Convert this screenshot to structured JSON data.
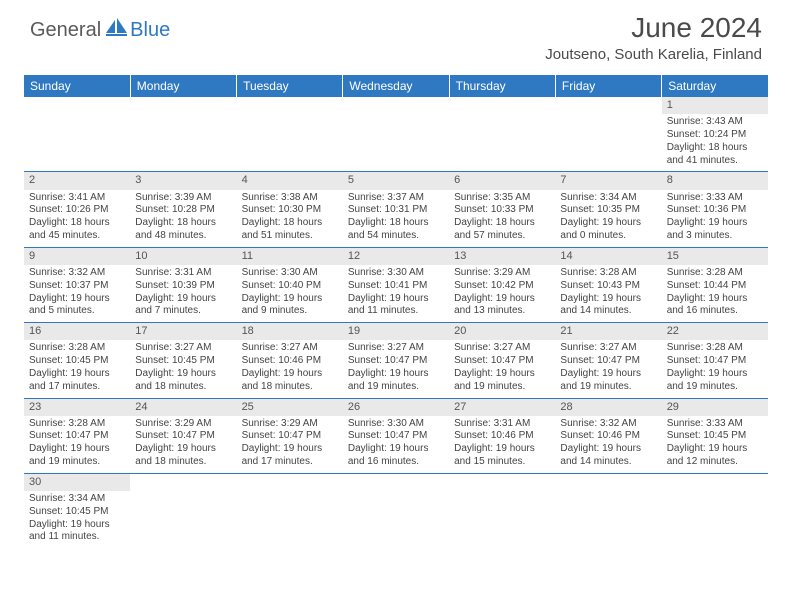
{
  "logo": {
    "text_dark": "General",
    "text_blue": "Blue",
    "icon_color": "#2f79c2"
  },
  "title": "June 2024",
  "location": "Joutseno, South Karelia, Finland",
  "header_bg": "#2f79c2",
  "header_text": "#ffffff",
  "band_bg": "#e9e9e9",
  "border_color": "#2f79c2",
  "weekdays": [
    "Sunday",
    "Monday",
    "Tuesday",
    "Wednesday",
    "Thursday",
    "Friday",
    "Saturday"
  ],
  "weeks": [
    [
      null,
      null,
      null,
      null,
      null,
      null,
      {
        "n": "1",
        "sr": "Sunrise: 3:43 AM",
        "ss": "Sunset: 10:24 PM",
        "d1": "Daylight: 18 hours",
        "d2": "and 41 minutes."
      }
    ],
    [
      {
        "n": "2",
        "sr": "Sunrise: 3:41 AM",
        "ss": "Sunset: 10:26 PM",
        "d1": "Daylight: 18 hours",
        "d2": "and 45 minutes."
      },
      {
        "n": "3",
        "sr": "Sunrise: 3:39 AM",
        "ss": "Sunset: 10:28 PM",
        "d1": "Daylight: 18 hours",
        "d2": "and 48 minutes."
      },
      {
        "n": "4",
        "sr": "Sunrise: 3:38 AM",
        "ss": "Sunset: 10:30 PM",
        "d1": "Daylight: 18 hours",
        "d2": "and 51 minutes."
      },
      {
        "n": "5",
        "sr": "Sunrise: 3:37 AM",
        "ss": "Sunset: 10:31 PM",
        "d1": "Daylight: 18 hours",
        "d2": "and 54 minutes."
      },
      {
        "n": "6",
        "sr": "Sunrise: 3:35 AM",
        "ss": "Sunset: 10:33 PM",
        "d1": "Daylight: 18 hours",
        "d2": "and 57 minutes."
      },
      {
        "n": "7",
        "sr": "Sunrise: 3:34 AM",
        "ss": "Sunset: 10:35 PM",
        "d1": "Daylight: 19 hours",
        "d2": "and 0 minutes."
      },
      {
        "n": "8",
        "sr": "Sunrise: 3:33 AM",
        "ss": "Sunset: 10:36 PM",
        "d1": "Daylight: 19 hours",
        "d2": "and 3 minutes."
      }
    ],
    [
      {
        "n": "9",
        "sr": "Sunrise: 3:32 AM",
        "ss": "Sunset: 10:37 PM",
        "d1": "Daylight: 19 hours",
        "d2": "and 5 minutes."
      },
      {
        "n": "10",
        "sr": "Sunrise: 3:31 AM",
        "ss": "Sunset: 10:39 PM",
        "d1": "Daylight: 19 hours",
        "d2": "and 7 minutes."
      },
      {
        "n": "11",
        "sr": "Sunrise: 3:30 AM",
        "ss": "Sunset: 10:40 PM",
        "d1": "Daylight: 19 hours",
        "d2": "and 9 minutes."
      },
      {
        "n": "12",
        "sr": "Sunrise: 3:30 AM",
        "ss": "Sunset: 10:41 PM",
        "d1": "Daylight: 19 hours",
        "d2": "and 11 minutes."
      },
      {
        "n": "13",
        "sr": "Sunrise: 3:29 AM",
        "ss": "Sunset: 10:42 PM",
        "d1": "Daylight: 19 hours",
        "d2": "and 13 minutes."
      },
      {
        "n": "14",
        "sr": "Sunrise: 3:28 AM",
        "ss": "Sunset: 10:43 PM",
        "d1": "Daylight: 19 hours",
        "d2": "and 14 minutes."
      },
      {
        "n": "15",
        "sr": "Sunrise: 3:28 AM",
        "ss": "Sunset: 10:44 PM",
        "d1": "Daylight: 19 hours",
        "d2": "and 16 minutes."
      }
    ],
    [
      {
        "n": "16",
        "sr": "Sunrise: 3:28 AM",
        "ss": "Sunset: 10:45 PM",
        "d1": "Daylight: 19 hours",
        "d2": "and 17 minutes."
      },
      {
        "n": "17",
        "sr": "Sunrise: 3:27 AM",
        "ss": "Sunset: 10:45 PM",
        "d1": "Daylight: 19 hours",
        "d2": "and 18 minutes."
      },
      {
        "n": "18",
        "sr": "Sunrise: 3:27 AM",
        "ss": "Sunset: 10:46 PM",
        "d1": "Daylight: 19 hours",
        "d2": "and 18 minutes."
      },
      {
        "n": "19",
        "sr": "Sunrise: 3:27 AM",
        "ss": "Sunset: 10:47 PM",
        "d1": "Daylight: 19 hours",
        "d2": "and 19 minutes."
      },
      {
        "n": "20",
        "sr": "Sunrise: 3:27 AM",
        "ss": "Sunset: 10:47 PM",
        "d1": "Daylight: 19 hours",
        "d2": "and 19 minutes."
      },
      {
        "n": "21",
        "sr": "Sunrise: 3:27 AM",
        "ss": "Sunset: 10:47 PM",
        "d1": "Daylight: 19 hours",
        "d2": "and 19 minutes."
      },
      {
        "n": "22",
        "sr": "Sunrise: 3:28 AM",
        "ss": "Sunset: 10:47 PM",
        "d1": "Daylight: 19 hours",
        "d2": "and 19 minutes."
      }
    ],
    [
      {
        "n": "23",
        "sr": "Sunrise: 3:28 AM",
        "ss": "Sunset: 10:47 PM",
        "d1": "Daylight: 19 hours",
        "d2": "and 19 minutes."
      },
      {
        "n": "24",
        "sr": "Sunrise: 3:29 AM",
        "ss": "Sunset: 10:47 PM",
        "d1": "Daylight: 19 hours",
        "d2": "and 18 minutes."
      },
      {
        "n": "25",
        "sr": "Sunrise: 3:29 AM",
        "ss": "Sunset: 10:47 PM",
        "d1": "Daylight: 19 hours",
        "d2": "and 17 minutes."
      },
      {
        "n": "26",
        "sr": "Sunrise: 3:30 AM",
        "ss": "Sunset: 10:47 PM",
        "d1": "Daylight: 19 hours",
        "d2": "and 16 minutes."
      },
      {
        "n": "27",
        "sr": "Sunrise: 3:31 AM",
        "ss": "Sunset: 10:46 PM",
        "d1": "Daylight: 19 hours",
        "d2": "and 15 minutes."
      },
      {
        "n": "28",
        "sr": "Sunrise: 3:32 AM",
        "ss": "Sunset: 10:46 PM",
        "d1": "Daylight: 19 hours",
        "d2": "and 14 minutes."
      },
      {
        "n": "29",
        "sr": "Sunrise: 3:33 AM",
        "ss": "Sunset: 10:45 PM",
        "d1": "Daylight: 19 hours",
        "d2": "and 12 minutes."
      }
    ],
    [
      {
        "n": "30",
        "sr": "Sunrise: 3:34 AM",
        "ss": "Sunset: 10:45 PM",
        "d1": "Daylight: 19 hours",
        "d2": "and 11 minutes."
      },
      null,
      null,
      null,
      null,
      null,
      null
    ]
  ]
}
